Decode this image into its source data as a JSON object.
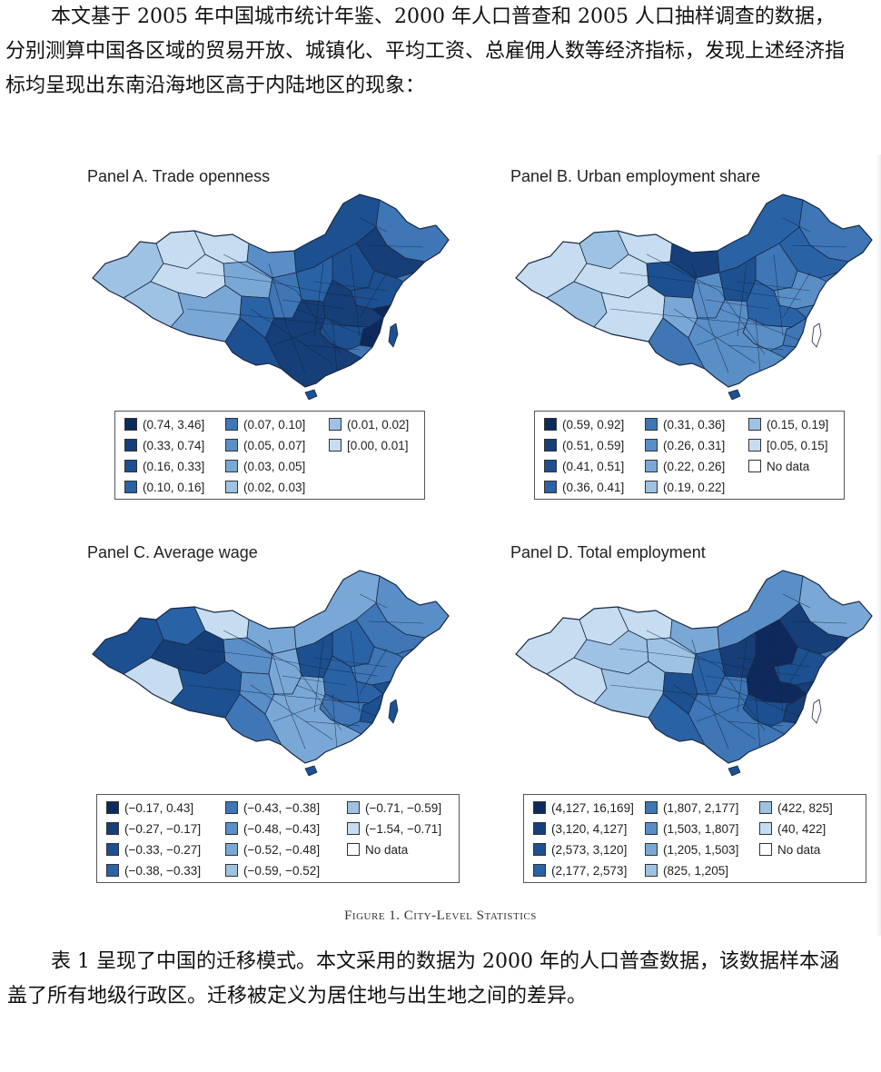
{
  "intro_text": "本文基于 2005 年中国城市统计年鉴、2000 年人口普查和 2005 人口抽样调查的数据，分别测算中国各区域的贸易开放、城镇化、平均工资、总雇佣人数等经济指标，发现上述经济指标均呈现出东南沿海地区高于内陆地区的现象：",
  "figure_caption": "Figure 1. City-Level Statistics",
  "outro_text": "表 1 呈现了中国的迁移模式。本文采用的数据为 2000 年的人口普查数据，该数据样本涵盖了所有地级行政区。迁移被定义为居住地与出生地之间的差异。",
  "palette": [
    "#0e2a5c",
    "#163e78",
    "#1d5090",
    "#2a62a6",
    "#3f76b5",
    "#5a8ec7",
    "#7aa8d6",
    "#9ec2e4",
    "#c6dcf0",
    "#ffffff"
  ],
  "panels": [
    {
      "title": "Panel A. Trade openness",
      "legend": [
        {
          "label": "(0.74, 3.46]",
          "shade": 0
        },
        {
          "label": "(0.33, 0.74]",
          "shade": 1
        },
        {
          "label": "(0.16, 0.33]",
          "shade": 2
        },
        {
          "label": "(0.10, 0.16]",
          "shade": 3
        },
        {
          "label": "(0.07, 0.10]",
          "shade": 4
        },
        {
          "label": "(0.05, 0.07]",
          "shade": 5
        },
        {
          "label": "(0.03, 0.05]",
          "shade": 6
        },
        {
          "label": "(0.02, 0.03]",
          "shade": 7
        },
        {
          "label": "(0.01, 0.02]",
          "shade": 7
        },
        {
          "label": "[0.00, 0.01]",
          "shade": 8
        }
      ]
    },
    {
      "title": "Panel B. Urban employment share",
      "legend": [
        {
          "label": "(0.59, 0.92]",
          "shade": 0
        },
        {
          "label": "(0.51, 0.59]",
          "shade": 1
        },
        {
          "label": "(0.41, 0.51]",
          "shade": 2
        },
        {
          "label": "(0.36, 0.41]",
          "shade": 3
        },
        {
          "label": "(0.31, 0.36]",
          "shade": 4
        },
        {
          "label": "(0.26, 0.31]",
          "shade": 5
        },
        {
          "label": "(0.22, 0.26]",
          "shade": 6
        },
        {
          "label": "(0.19, 0.22]",
          "shade": 7
        },
        {
          "label": "(0.15, 0.19]",
          "shade": 7
        },
        {
          "label": "[0.05, 0.15]",
          "shade": 8
        },
        {
          "label": "No data",
          "shade": 9
        }
      ]
    },
    {
      "title": "Panel C. Average wage",
      "legend": [
        {
          "label": "(−0.17, 0.43]",
          "shade": 0
        },
        {
          "label": "(−0.27, −0.17]",
          "shade": 1
        },
        {
          "label": "(−0.33, −0.27]",
          "shade": 2
        },
        {
          "label": "(−0.38, −0.33]",
          "shade": 3
        },
        {
          "label": "(−0.43, −0.38]",
          "shade": 4
        },
        {
          "label": "(−0.48, −0.43]",
          "shade": 5
        },
        {
          "label": "(−0.52, −0.48]",
          "shade": 6
        },
        {
          "label": "(−0.59, −0.52]",
          "shade": 7
        },
        {
          "label": "(−0.71, −0.59]",
          "shade": 7
        },
        {
          "label": "(−1.54, −0.71]",
          "shade": 8
        },
        {
          "label": "No data",
          "shade": 9
        }
      ]
    },
    {
      "title": "Panel D. Total employment",
      "legend": [
        {
          "label": "(4,127, 16,169]",
          "shade": 0
        },
        {
          "label": "(3,120, 4,127]",
          "shade": 1
        },
        {
          "label": "(2,573, 3,120]",
          "shade": 2
        },
        {
          "label": "(2,177, 2,573]",
          "shade": 3
        },
        {
          "label": "(1,807, 2,177]",
          "shade": 4
        },
        {
          "label": "(1,503, 1,807]",
          "shade": 5
        },
        {
          "label": "(1,205, 1,503]",
          "shade": 6
        },
        {
          "label": "(825, 1,205]",
          "shade": 7
        },
        {
          "label": "(422, 825]",
          "shade": 7
        },
        {
          "label": "(40, 422]",
          "shade": 8
        },
        {
          "label": "No data",
          "shade": 9
        }
      ]
    }
  ],
  "maps": {
    "A": {
      "west": [
        7,
        8,
        8,
        7,
        6,
        8
      ],
      "north": [
        5,
        6,
        2,
        4
      ],
      "east": [
        1,
        2,
        3,
        2,
        1,
        0,
        2
      ],
      "south": [
        4,
        3,
        2,
        1
      ]
    },
    "B": {
      "west": [
        8,
        7,
        8,
        7,
        8,
        8
      ],
      "north": [
        1,
        2,
        3,
        4
      ],
      "east": [
        3,
        4,
        2,
        5,
        3,
        4,
        5
      ],
      "south": [
        5,
        6,
        4,
        5
      ]
    },
    "C": {
      "west": [
        2,
        3,
        1,
        8,
        2,
        8
      ],
      "north": [
        6,
        5,
        6,
        5
      ],
      "east": [
        4,
        3,
        2,
        4,
        3,
        2,
        4
      ],
      "south": [
        6,
        5,
        4,
        6
      ]
    },
    "D": {
      "west": [
        8,
        8,
        7,
        8,
        7,
        8
      ],
      "north": [
        6,
        7,
        5,
        6
      ],
      "east": [
        1,
        0,
        1,
        2,
        0,
        1,
        2
      ],
      "south": [
        3,
        2,
        3,
        4
      ]
    }
  }
}
